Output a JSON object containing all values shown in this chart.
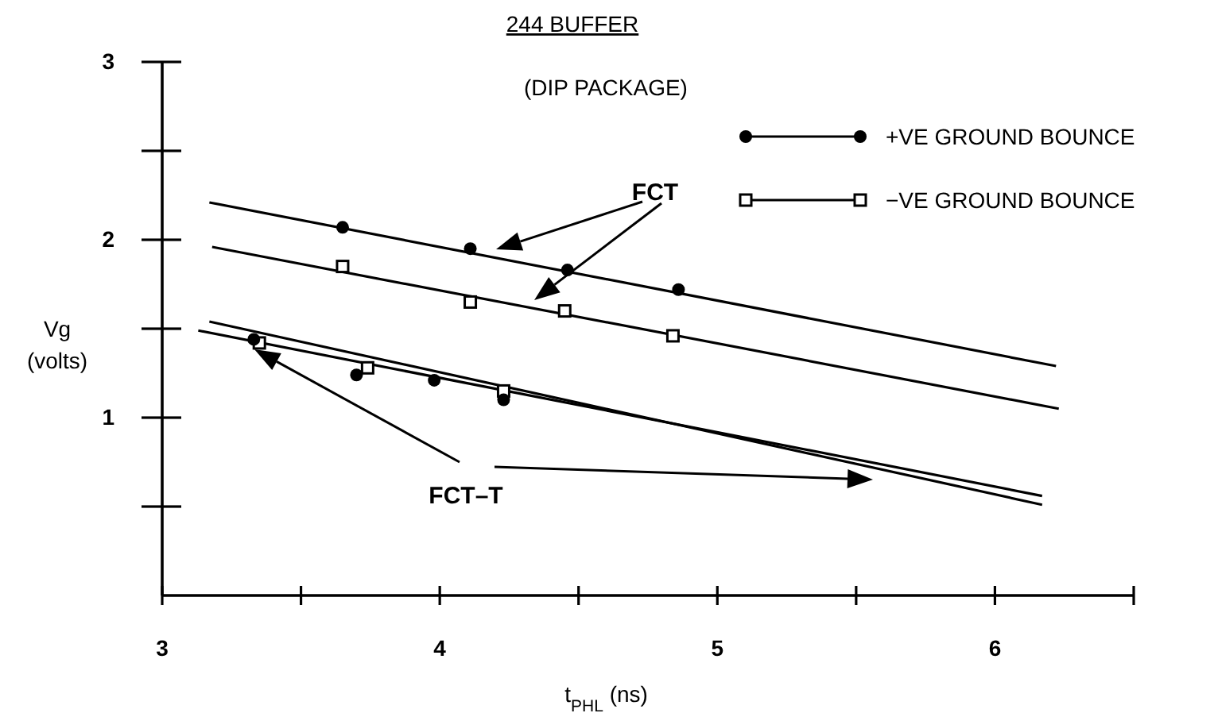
{
  "chart_data": {
    "type": "scatter",
    "title": "244 BUFFER",
    "subtitle": "(DIP PACKAGE)",
    "xlabel": "t$_{PHL}$   (ns)",
    "ylabel": "Vg (volts)",
    "xlim": [
      3,
      6.5
    ],
    "xticks": [
      3,
      {
        "value": 3.5,
        "label": null
      },
      4,
      {
        "value": 4.5,
        "label": null
      },
      5,
      {
        "value": 5.5,
        "label": null
      },
      6,
      {
        "value": 6.5,
        "label": null
      }
    ],
    "ylim": [
      0,
      3
    ],
    "yticks": [
      {
        "value": 0.5,
        "label": null
      },
      1,
      {
        "value": 1.5,
        "label": null
      },
      2,
      {
        "value": 2.5,
        "label": null
      },
      3
    ],
    "grid": false,
    "legend": "top right",
    "series": [
      {
        "name": "+VE GROUND BOUNCE",
        "marker": "circle",
        "color": "#000000",
        "x": [
          3.33,
          3.65,
          3.7,
          3.98,
          4.11,
          4.23,
          4.46,
          4.86
        ],
        "values": [
          1.44,
          2.07,
          1.24,
          1.21,
          1.95,
          1.1,
          1.83,
          1.72
        ]
      },
      {
        "name": "−VE GROUND BOUNCE",
        "marker": "square",
        "color": "#000000",
        "x": [
          3.35,
          3.65,
          3.74,
          4.11,
          4.23,
          4.45,
          4.84
        ],
        "values": [
          1.42,
          1.85,
          1.28,
          1.65,
          1.15,
          1.6,
          1.46
        ]
      },
      {
        "type": "line",
        "marker": "none",
        "color": "#000000",
        "x": [
          3.17,
          6.22
        ],
        "values": [
          2.21,
          1.29
        ]
      },
      {
        "type": "line",
        "marker": "none",
        "color": "#000000",
        "x": [
          3.18,
          6.23
        ],
        "values": [
          1.96,
          1.05
        ]
      },
      {
        "type": "line",
        "marker": "none",
        "color": "#000000",
        "x": [
          3.13,
          6.17
        ],
        "values": [
          1.49,
          0.56
        ]
      },
      {
        "type": "line",
        "marker": "none",
        "color": "#000000",
        "x": [
          3.17,
          6.17
        ],
        "values": [
          1.54,
          0.51
        ]
      }
    ],
    "annotations": [
      "FCT",
      "FCT–T"
    ]
  }
}
